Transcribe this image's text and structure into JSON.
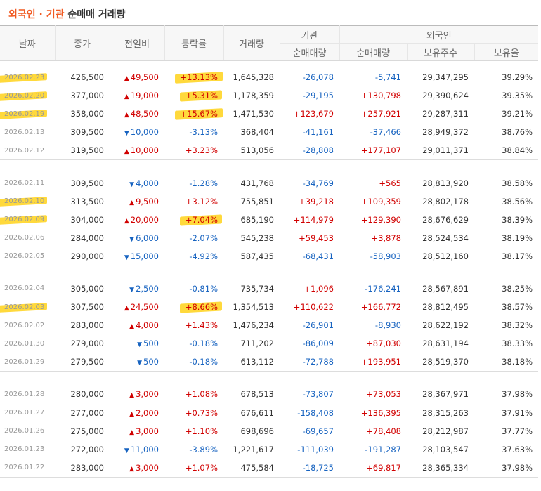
{
  "title": {
    "part1": "외국인",
    "sep": " · ",
    "part2": "기관",
    "part3": " 순매매 거래량"
  },
  "headers": {
    "date": "날짜",
    "close": "종가",
    "change": "전일비",
    "rate": "등락률",
    "volume": "거래량",
    "institution": "기관",
    "foreign": "외국인",
    "inst_net": "순매매량",
    "foreign_net": "순매매량",
    "foreign_hold": "보유주수",
    "foreign_rate": "보유율"
  },
  "colors": {
    "up": "#d10000",
    "down": "#1763c0",
    "highlight": "#ffd21a",
    "title_accent": "#f15a22"
  },
  "groups": [
    [
      {
        "date": "2026.02.23",
        "close": "426,500",
        "dir": "up",
        "change": "49,500",
        "rate": "+13.13%",
        "volume": "1,645,328",
        "inst": "-26,078",
        "fnet": "-5,741",
        "fhold": "29,347,295",
        "frate": "39.29%",
        "hlDate": true,
        "hlRate": true
      },
      {
        "date": "2026.02.20",
        "close": "377,000",
        "dir": "up",
        "change": "19,000",
        "rate": "+5.31%",
        "volume": "1,178,359",
        "inst": "-29,195",
        "fnet": "+130,798",
        "fhold": "29,390,624",
        "frate": "39.35%",
        "hlDate": true,
        "hlRate": true
      },
      {
        "date": "2026.02.19",
        "close": "358,000",
        "dir": "up",
        "change": "48,500",
        "rate": "+15.67%",
        "volume": "1,471,530",
        "inst": "+123,679",
        "fnet": "+257,921",
        "fhold": "29,287,311",
        "frate": "39.21%",
        "hlDate": true,
        "hlRate": true
      },
      {
        "date": "2026.02.13",
        "close": "309,500",
        "dir": "down",
        "change": "10,000",
        "rate": "-3.13%",
        "volume": "368,404",
        "inst": "-41,161",
        "fnet": "-37,466",
        "fhold": "28,949,372",
        "frate": "38.76%"
      },
      {
        "date": "2026.02.12",
        "close": "319,500",
        "dir": "up",
        "change": "10,000",
        "rate": "+3.23%",
        "volume": "513,056",
        "inst": "-28,808",
        "fnet": "+177,107",
        "fhold": "29,011,371",
        "frate": "38.84%"
      }
    ],
    [
      {
        "date": "2026.02.11",
        "close": "309,500",
        "dir": "down",
        "change": "4,000",
        "rate": "-1.28%",
        "volume": "431,768",
        "inst": "-34,769",
        "fnet": "+565",
        "fhold": "28,813,920",
        "frate": "38.58%"
      },
      {
        "date": "2026.02.10",
        "close": "313,500",
        "dir": "up",
        "change": "9,500",
        "rate": "+3.12%",
        "volume": "755,851",
        "inst": "+39,218",
        "fnet": "+109,359",
        "fhold": "28,802,178",
        "frate": "38.56%",
        "hlDate": true
      },
      {
        "date": "2026.02.09",
        "close": "304,000",
        "dir": "up",
        "change": "20,000",
        "rate": "+7.04%",
        "volume": "685,190",
        "inst": "+114,979",
        "fnet": "+129,390",
        "fhold": "28,676,629",
        "frate": "38.39%",
        "hlDate": true,
        "hlRate": true
      },
      {
        "date": "2026.02.06",
        "close": "284,000",
        "dir": "down",
        "change": "6,000",
        "rate": "-2.07%",
        "volume": "545,238",
        "inst": "+59,453",
        "fnet": "+3,878",
        "fhold": "28,524,534",
        "frate": "38.19%"
      },
      {
        "date": "2026.02.05",
        "close": "290,000",
        "dir": "down",
        "change": "15,000",
        "rate": "-4.92%",
        "volume": "587,435",
        "inst": "-68,431",
        "fnet": "-58,903",
        "fhold": "28,512,160",
        "frate": "38.17%"
      }
    ],
    [
      {
        "date": "2026.02.04",
        "close": "305,000",
        "dir": "down",
        "change": "2,500",
        "rate": "-0.81%",
        "volume": "735,734",
        "inst": "+1,096",
        "fnet": "-176,241",
        "fhold": "28,567,891",
        "frate": "38.25%"
      },
      {
        "date": "2026.02.03",
        "close": "307,500",
        "dir": "up",
        "change": "24,500",
        "rate": "+8.66%",
        "volume": "1,354,513",
        "inst": "+110,622",
        "fnet": "+166,772",
        "fhold": "28,812,495",
        "frate": "38.57%",
        "hlDate": true,
        "hlRate": true
      },
      {
        "date": "2026.02.02",
        "close": "283,000",
        "dir": "up",
        "change": "4,000",
        "rate": "+1.43%",
        "volume": "1,476,234",
        "inst": "-26,901",
        "fnet": "-8,930",
        "fhold": "28,622,192",
        "frate": "38.32%"
      },
      {
        "date": "2026.01.30",
        "close": "279,000",
        "dir": "down",
        "change": "500",
        "rate": "-0.18%",
        "volume": "711,202",
        "inst": "-86,009",
        "fnet": "+87,030",
        "fhold": "28,631,194",
        "frate": "38.33%"
      },
      {
        "date": "2026.01.29",
        "close": "279,500",
        "dir": "down",
        "change": "500",
        "rate": "-0.18%",
        "volume": "613,112",
        "inst": "-72,788",
        "fnet": "+193,951",
        "fhold": "28,519,370",
        "frate": "38.18%"
      }
    ],
    [
      {
        "date": "2026.01.28",
        "close": "280,000",
        "dir": "up",
        "change": "3,000",
        "rate": "+1.08%",
        "volume": "678,513",
        "inst": "-73,807",
        "fnet": "+73,053",
        "fhold": "28,367,971",
        "frate": "37.98%"
      },
      {
        "date": "2026.01.27",
        "close": "277,000",
        "dir": "up",
        "change": "2,000",
        "rate": "+0.73%",
        "volume": "676,611",
        "inst": "-158,408",
        "fnet": "+136,395",
        "fhold": "28,315,263",
        "frate": "37.91%"
      },
      {
        "date": "2026.01.26",
        "close": "275,000",
        "dir": "up",
        "change": "3,000",
        "rate": "+1.10%",
        "volume": "698,696",
        "inst": "-69,657",
        "fnet": "+78,408",
        "fhold": "28,212,987",
        "frate": "37.77%"
      },
      {
        "date": "2026.01.23",
        "close": "272,000",
        "dir": "down",
        "change": "11,000",
        "rate": "-3.89%",
        "volume": "1,221,617",
        "inst": "-111,039",
        "fnet": "-191,287",
        "fhold": "28,103,547",
        "frate": "37.63%"
      },
      {
        "date": "2026.01.22",
        "close": "283,000",
        "dir": "up",
        "change": "3,000",
        "rate": "+1.07%",
        "volume": "475,584",
        "inst": "-18,725",
        "fnet": "+69,817",
        "fhold": "28,365,334",
        "frate": "37.98%"
      }
    ]
  ]
}
